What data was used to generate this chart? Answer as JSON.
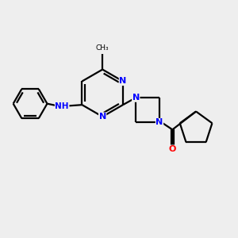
{
  "bg_color": "#eeeeee",
  "bond_color": "#000000",
  "N_color": "#0000ff",
  "O_color": "#ff0000",
  "line_width": 1.6,
  "figsize": [
    3.0,
    3.0
  ],
  "dpi": 100,
  "xlim": [
    0,
    10
  ],
  "ylim": [
    0,
    10
  ]
}
